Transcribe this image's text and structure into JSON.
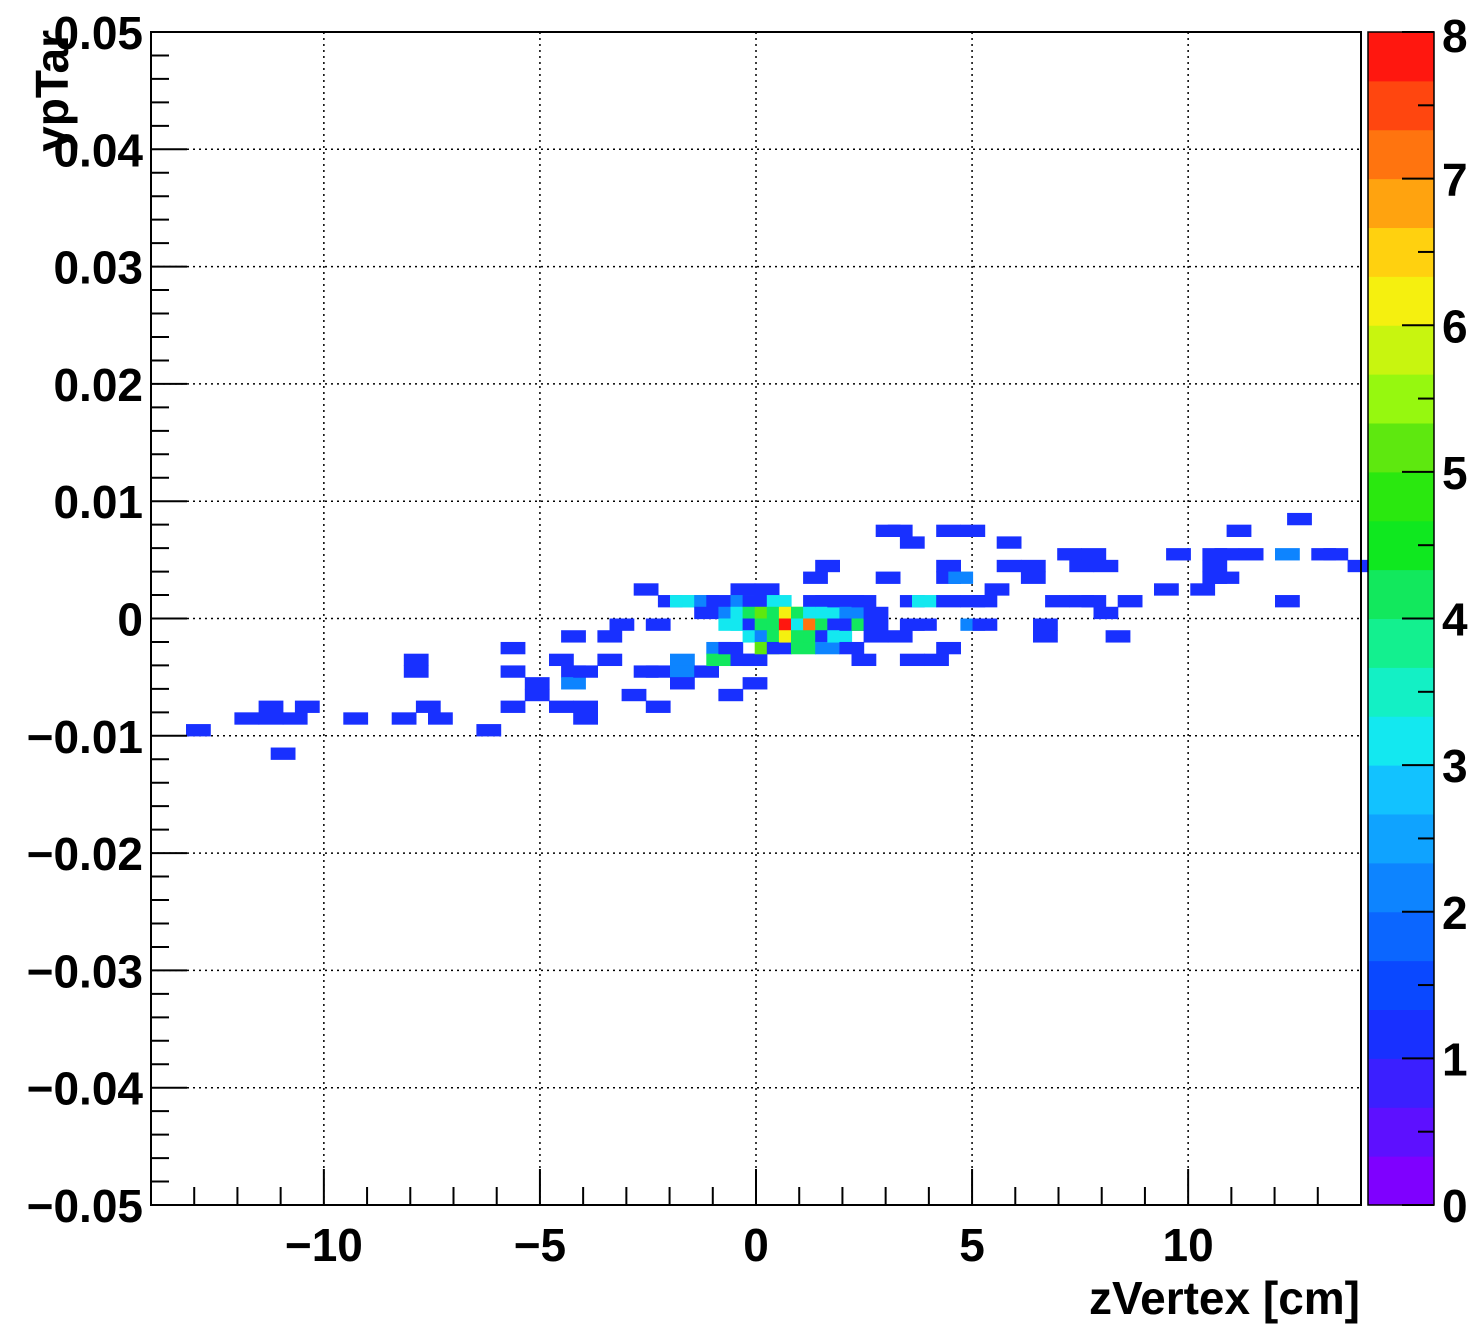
{
  "chart_data": {
    "type": "heatmap",
    "title": "",
    "xlabel": "zVertex [cm]",
    "ylabel": "ypTar",
    "xlim": [
      -14,
      14
    ],
    "ylim": [
      -0.05,
      0.05
    ],
    "grid": true,
    "x_bin_width": 0.56,
    "y_bin_width": 0.001,
    "x_ticks": [
      -10,
      -5,
      0,
      5,
      10
    ],
    "x_tick_labels": [
      "−10",
      "−5",
      "0",
      "5",
      "10"
    ],
    "y_ticks": [
      -0.05,
      -0.04,
      -0.03,
      -0.02,
      -0.01,
      0,
      0.01,
      0.02,
      0.03,
      0.04,
      0.05
    ],
    "y_tick_labels": [
      "−0.05",
      "−0.04",
      "−0.03",
      "−0.02",
      "−0.01",
      "0",
      "0.01",
      "0.02",
      "0.03",
      "0.04",
      "0.05"
    ],
    "colorbar": {
      "min": 0,
      "max": 8,
      "ticks": [
        0,
        1,
        2,
        3,
        4,
        5,
        6,
        7,
        8
      ],
      "tick_labels": [
        "0",
        "1",
        "2",
        "3",
        "4",
        "5",
        "6",
        "7",
        "8"
      ],
      "colors": [
        "#7f00ff",
        "#5d10ff",
        "#3b1fff",
        "#1830ff",
        "#0a48ff",
        "#0b66ff",
        "#0d84ff",
        "#0fa3ff",
        "#12c2ff",
        "#13e8f0",
        "#13f0c5",
        "#13f08f",
        "#12e85d",
        "#0fe81f",
        "#2ae80f",
        "#5ee80f",
        "#96f80f",
        "#c8f50f",
        "#f5f00f",
        "#ffd10f",
        "#ffa30f",
        "#ff740f",
        "#ff460f",
        "#ff170f"
      ]
    },
    "bins": [
      {
        "x": -12.91,
        "y": -0.0095,
        "v": 1
      },
      {
        "x": -11.79,
        "y": -0.0085,
        "v": 1
      },
      {
        "x": -11.23,
        "y": -0.0085,
        "v": 1
      },
      {
        "x": -11.23,
        "y": -0.0075,
        "v": 1
      },
      {
        "x": -10.95,
        "y": -0.0115,
        "v": 1
      },
      {
        "x": -10.67,
        "y": -0.0085,
        "v": 1
      },
      {
        "x": -10.39,
        "y": -0.0075,
        "v": 1
      },
      {
        "x": -9.27,
        "y": -0.0085,
        "v": 1
      },
      {
        "x": -8.15,
        "y": -0.0085,
        "v": 1
      },
      {
        "x": -7.87,
        "y": -0.0035,
        "v": 1
      },
      {
        "x": -7.87,
        "y": -0.0045,
        "v": 1
      },
      {
        "x": -7.59,
        "y": -0.0075,
        "v": 1
      },
      {
        "x": -7.31,
        "y": -0.0085,
        "v": 1
      },
      {
        "x": -6.19,
        "y": -0.0095,
        "v": 1
      },
      {
        "x": -5.63,
        "y": -0.0025,
        "v": 1
      },
      {
        "x": -5.63,
        "y": -0.0045,
        "v": 1
      },
      {
        "x": -5.63,
        "y": -0.0075,
        "v": 1
      },
      {
        "x": -5.07,
        "y": -0.0055,
        "v": 1
      },
      {
        "x": -5.07,
        "y": -0.0065,
        "v": 1
      },
      {
        "x": -4.51,
        "y": -0.0035,
        "v": 1
      },
      {
        "x": -4.51,
        "y": -0.0075,
        "v": 1
      },
      {
        "x": -4.23,
        "y": -0.0015,
        "v": 1
      },
      {
        "x": -4.23,
        "y": -0.0045,
        "v": 1
      },
      {
        "x": -4.23,
        "y": -0.0055,
        "v": 2
      },
      {
        "x": -3.95,
        "y": -0.0045,
        "v": 1
      },
      {
        "x": -3.95,
        "y": -0.0075,
        "v": 1
      },
      {
        "x": -3.95,
        "y": -0.0085,
        "v": 1
      },
      {
        "x": -3.39,
        "y": -0.0015,
        "v": 1
      },
      {
        "x": -3.39,
        "y": -0.0035,
        "v": 1
      },
      {
        "x": -3.11,
        "y": -0.0005,
        "v": 1
      },
      {
        "x": -2.83,
        "y": -0.0065,
        "v": 1
      },
      {
        "x": -2.55,
        "y": 0.0025,
        "v": 1
      },
      {
        "x": -2.55,
        "y": -0.0045,
        "v": 1
      },
      {
        "x": -2.27,
        "y": -0.0005,
        "v": 1
      },
      {
        "x": -2.27,
        "y": -0.0045,
        "v": 1
      },
      {
        "x": -2.27,
        "y": -0.0075,
        "v": 1
      },
      {
        "x": -1.99,
        "y": 0.0015,
        "v": 1
      },
      {
        "x": -1.71,
        "y": 0.0015,
        "v": 3
      },
      {
        "x": -1.71,
        "y": -0.0035,
        "v": 2
      },
      {
        "x": -1.71,
        "y": -0.0045,
        "v": 2
      },
      {
        "x": -1.71,
        "y": -0.0055,
        "v": 1
      },
      {
        "x": -1.43,
        "y": 0.0015,
        "v": 3
      },
      {
        "x": -1.15,
        "y": 0.0015,
        "v": 2
      },
      {
        "x": -1.15,
        "y": 0.0005,
        "v": 1
      },
      {
        "x": -1.15,
        "y": -0.0045,
        "v": 1
      },
      {
        "x": -0.87,
        "y": 0.0015,
        "v": 1
      },
      {
        "x": -0.87,
        "y": -0.0025,
        "v": 2
      },
      {
        "x": -0.87,
        "y": -0.0035,
        "v": 4
      },
      {
        "x": -0.59,
        "y": 0.0005,
        "v": 2
      },
      {
        "x": -0.59,
        "y": -0.0005,
        "v": 3
      },
      {
        "x": -0.59,
        "y": -0.0025,
        "v": 1
      },
      {
        "x": -0.59,
        "y": -0.0065,
        "v": 1
      },
      {
        "x": -0.31,
        "y": 0.0025,
        "v": 1
      },
      {
        "x": -0.31,
        "y": 0.0015,
        "v": 2
      },
      {
        "x": -0.31,
        "y": 0.0005,
        "v": 3
      },
      {
        "x": -0.31,
        "y": -0.0005,
        "v": 3
      },
      {
        "x": -0.31,
        "y": -0.0035,
        "v": 1
      },
      {
        "x": -0.03,
        "y": 0.0015,
        "v": 1
      },
      {
        "x": -0.03,
        "y": 0.0005,
        "v": 4
      },
      {
        "x": -0.03,
        "y": -0.0005,
        "v": 1
      },
      {
        "x": -0.03,
        "y": -0.0015,
        "v": 3
      },
      {
        "x": -0.03,
        "y": -0.0035,
        "v": 1
      },
      {
        "x": -0.03,
        "y": -0.0055,
        "v": 1
      },
      {
        "x": 0.25,
        "y": 0.0025,
        "v": 1
      },
      {
        "x": 0.25,
        "y": 0.0015,
        "v": 1
      },
      {
        "x": 0.25,
        "y": 0.0005,
        "v": 5
      },
      {
        "x": 0.25,
        "y": -0.0005,
        "v": 4
      },
      {
        "x": 0.25,
        "y": -0.0015,
        "v": 2
      },
      {
        "x": 0.25,
        "y": -0.0025,
        "v": 5
      },
      {
        "x": 0.53,
        "y": 0.0015,
        "v": 3
      },
      {
        "x": 0.53,
        "y": 0.0005,
        "v": 4
      },
      {
        "x": 0.53,
        "y": -0.0005,
        "v": 4
      },
      {
        "x": 0.53,
        "y": -0.0015,
        "v": 4
      },
      {
        "x": 0.53,
        "y": -0.0025,
        "v": 1
      },
      {
        "x": 0.81,
        "y": 0.0005,
        "v": 6
      },
      {
        "x": 0.81,
        "y": -0.0005,
        "v": 8
      },
      {
        "x": 0.81,
        "y": -0.0015,
        "v": 6
      },
      {
        "x": 1.09,
        "y": 0.0005,
        "v": 4
      },
      {
        "x": 1.09,
        "y": -0.0005,
        "v": 3
      },
      {
        "x": 1.09,
        "y": -0.0015,
        "v": 4
      },
      {
        "x": 1.09,
        "y": -0.0025,
        "v": 4
      },
      {
        "x": 1.37,
        "y": 0.0035,
        "v": 1
      },
      {
        "x": 1.37,
        "y": 0.0015,
        "v": 1
      },
      {
        "x": 1.37,
        "y": 0.0005,
        "v": 3
      },
      {
        "x": 1.37,
        "y": -0.0005,
        "v": 7
      },
      {
        "x": 1.37,
        "y": -0.0015,
        "v": 4
      },
      {
        "x": 1.65,
        "y": 0.0045,
        "v": 1
      },
      {
        "x": 1.65,
        "y": 0.0015,
        "v": 1
      },
      {
        "x": 1.65,
        "y": 0.0005,
        "v": 3
      },
      {
        "x": 1.65,
        "y": -0.0005,
        "v": 4
      },
      {
        "x": 1.65,
        "y": -0.0015,
        "v": 1
      },
      {
        "x": 1.65,
        "y": -0.0025,
        "v": 2
      },
      {
        "x": 1.93,
        "y": 0.0015,
        "v": 1
      },
      {
        "x": 1.93,
        "y": -0.0005,
        "v": 1
      },
      {
        "x": 1.93,
        "y": -0.0015,
        "v": 3
      },
      {
        "x": 2.21,
        "y": 0.0015,
        "v": 1
      },
      {
        "x": 2.21,
        "y": 0.0005,
        "v": 2
      },
      {
        "x": 2.21,
        "y": -0.0005,
        "v": 1
      },
      {
        "x": 2.21,
        "y": -0.0025,
        "v": 1
      },
      {
        "x": 2.49,
        "y": 0.0015,
        "v": 1
      },
      {
        "x": 2.49,
        "y": -0.0005,
        "v": 4
      },
      {
        "x": 2.49,
        "y": -0.0035,
        "v": 1
      },
      {
        "x": 2.77,
        "y": 0.0005,
        "v": 1
      },
      {
        "x": 2.77,
        "y": -0.0005,
        "v": 1
      },
      {
        "x": 2.77,
        "y": -0.0015,
        "v": 1
      },
      {
        "x": 3.05,
        "y": 0.0075,
        "v": 1
      },
      {
        "x": 3.05,
        "y": 0.0035,
        "v": 1
      },
      {
        "x": 3.33,
        "y": 0.0075,
        "v": 1
      },
      {
        "x": 3.33,
        "y": -0.0015,
        "v": 1
      },
      {
        "x": 3.61,
        "y": 0.0065,
        "v": 1
      },
      {
        "x": 3.61,
        "y": 0.0015,
        "v": 1
      },
      {
        "x": 3.61,
        "y": -0.0005,
        "v": 1
      },
      {
        "x": 3.61,
        "y": -0.0035,
        "v": 1
      },
      {
        "x": 3.89,
        "y": 0.0015,
        "v": 3
      },
      {
        "x": 3.89,
        "y": -0.0005,
        "v": 1
      },
      {
        "x": 4.17,
        "y": -0.0035,
        "v": 1
      },
      {
        "x": 4.45,
        "y": 0.0075,
        "v": 1
      },
      {
        "x": 4.45,
        "y": 0.0045,
        "v": 1
      },
      {
        "x": 4.45,
        "y": 0.0035,
        "v": 1
      },
      {
        "x": 4.45,
        "y": 0.0015,
        "v": 1
      },
      {
        "x": 4.45,
        "y": -0.0025,
        "v": 1
      },
      {
        "x": 4.73,
        "y": 0.0035,
        "v": 2
      },
      {
        "x": 5.01,
        "y": 0.0075,
        "v": 1
      },
      {
        "x": 5.01,
        "y": 0.0015,
        "v": 1
      },
      {
        "x": 5.01,
        "y": -0.0005,
        "v": 2
      },
      {
        "x": 5.29,
        "y": 0.0015,
        "v": 1
      },
      {
        "x": 5.29,
        "y": -0.0005,
        "v": 1
      },
      {
        "x": 5.57,
        "y": 0.0025,
        "v": 1
      },
      {
        "x": 5.85,
        "y": 0.0065,
        "v": 1
      },
      {
        "x": 5.85,
        "y": 0.0045,
        "v": 1
      },
      {
        "x": 6.41,
        "y": 0.0045,
        "v": 1
      },
      {
        "x": 6.41,
        "y": 0.0035,
        "v": 1
      },
      {
        "x": 6.69,
        "y": -0.0005,
        "v": 1
      },
      {
        "x": 6.69,
        "y": -0.0015,
        "v": 1
      },
      {
        "x": 6.97,
        "y": 0.0015,
        "v": 1
      },
      {
        "x": 7.25,
        "y": 0.0055,
        "v": 1
      },
      {
        "x": 7.53,
        "y": 0.0045,
        "v": 1
      },
      {
        "x": 7.53,
        "y": 0.0015,
        "v": 1
      },
      {
        "x": 7.81,
        "y": 0.0055,
        "v": 1
      },
      {
        "x": 7.81,
        "y": 0.0015,
        "v": 1
      },
      {
        "x": 8.09,
        "y": 0.0045,
        "v": 1
      },
      {
        "x": 8.09,
        "y": 0.0005,
        "v": 1
      },
      {
        "x": 8.37,
        "y": -0.0015,
        "v": 1
      },
      {
        "x": 8.65,
        "y": 0.0015,
        "v": 1
      },
      {
        "x": 9.49,
        "y": 0.0025,
        "v": 1
      },
      {
        "x": 9.77,
        "y": 0.0055,
        "v": 1
      },
      {
        "x": 10.33,
        "y": 0.0025,
        "v": 1
      },
      {
        "x": 10.61,
        "y": 0.0055,
        "v": 1
      },
      {
        "x": 10.61,
        "y": 0.0045,
        "v": 1
      },
      {
        "x": 10.61,
        "y": 0.0035,
        "v": 1
      },
      {
        "x": 10.89,
        "y": 0.0055,
        "v": 1
      },
      {
        "x": 10.89,
        "y": 0.0035,
        "v": 1
      },
      {
        "x": 11.17,
        "y": 0.0075,
        "v": 1
      },
      {
        "x": 11.45,
        "y": 0.0055,
        "v": 1
      },
      {
        "x": 12.29,
        "y": 0.0055,
        "v": 2
      },
      {
        "x": 12.29,
        "y": 0.0015,
        "v": 1
      },
      {
        "x": 12.57,
        "y": 0.0085,
        "v": 1
      },
      {
        "x": 13.13,
        "y": 0.0055,
        "v": 1
      },
      {
        "x": 13.41,
        "y": 0.0055,
        "v": 1
      },
      {
        "x": 13.97,
        "y": 0.0045,
        "v": 1
      }
    ]
  }
}
